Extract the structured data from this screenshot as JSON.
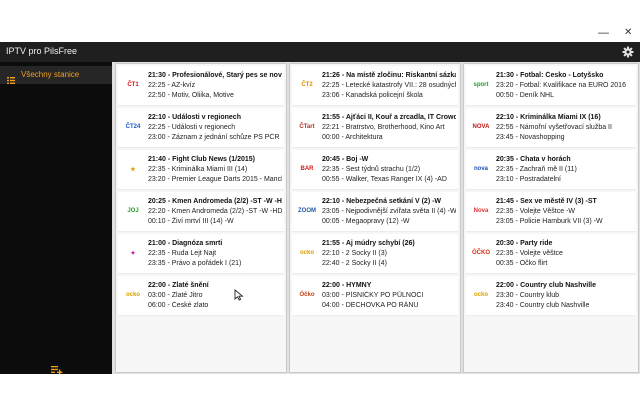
{
  "window": {
    "minimize_glyph": "—",
    "close_glyph": "✕"
  },
  "appbar": {
    "title": "IPTV pro PilsFree",
    "settings_icon": "gear-icon"
  },
  "sidebar": {
    "items": [
      {
        "label": "Všechny stanice",
        "icon": "list-icon",
        "active": true
      }
    ],
    "add_icon": "playlist-add-icon",
    "accent": "#f0a020"
  },
  "columns": [
    {
      "cards": [
        {
          "logo": "ČT1",
          "logo_color": "#d01818",
          "now": "21:30 - Profesionálové, Starý pes se novým k...",
          "next1": "22:25 - AZ-kvíz",
          "next2": "22:50 - Motiv, Oliika, Motive"
        },
        {
          "logo": "ČT24",
          "logo_color": "#1a55c8",
          "now": "22:10 - Události v regionech",
          "next1": "22:25 - Události v regionech",
          "next2": "23:00 - Záznam z jednání schůze PS PČR"
        },
        {
          "logo": "★",
          "logo_color": "#e0a000",
          "now": "21:40 - Fight Club News (1/2015)",
          "next1": "22:35 - Kriminálka Miami III (14)",
          "next2": "23:20 - Premier League Darts 2015 - Manchest..."
        },
        {
          "logo": "JOJ",
          "logo_color": "#2a9a2a",
          "now": "20:25 - Kmen Andromeda (2/2) -ST -W -HD",
          "next1": "22:20 - Kmen Andromeda (2/2) -ST -W -HD",
          "next2": "00:10 - Živí mrtví III (14) -W"
        },
        {
          "logo": "✦",
          "logo_color": "#c0159a",
          "now": "21:00 - Diagnóza smrti",
          "next1": "22:35 - Ruda Lejt Najt",
          "next2": "23:35 - Právo a pořádek I (21)"
        },
        {
          "logo": "ocko",
          "logo_color": "#d8a000",
          "now": "22:00 - Zlaté šnění",
          "next1": "03:00 - Zlaté Jitro",
          "next2": "06:00 - České zlato"
        }
      ]
    },
    {
      "cards": [
        {
          "logo": "ČT2",
          "logo_color": "#e08a00",
          "now": "21:26 - Na místě zločinu: Riskantní sázka",
          "next1": "22:25 - Letecké katastrofy VII.: 28 osudných se...",
          "next2": "23:06 - Kanadská policejní škola"
        },
        {
          "logo": "ČTart",
          "logo_color": "#b03020",
          "now": "21:55 - Ajťáci II, Kouř a zrcadla, IT Crowd",
          "next1": "22:21 - Bratrstvo, Brotherhood, Kino Art",
          "next2": "00:00 - Architektura"
        },
        {
          "logo": "BAR",
          "logo_color": "#d02020",
          "now": "20:45 - Boj -W",
          "next1": "22:35 - Šest týdnů strachu (1/2)",
          "next2": "00:55 - Walker, Texas Ranger IX (4) -AD"
        },
        {
          "logo": "ZOOM",
          "logo_color": "#1e5aa8",
          "now": "22:10 - Nebezpečná setkání V (2) -W",
          "next1": "23:05 - Nejpodivnější zvířata světa II (4) -W",
          "next2": "00:05 - Megaopravy (12) -W"
        },
        {
          "logo": "ocko",
          "logo_color": "#d8a000",
          "now": "21:55 - Aj múdry schybí (26)",
          "next1": "22:10 - 2 Šocky II (3)",
          "next2": "22:40 - 2 Šocky II (4)"
        },
        {
          "logo": "Óčko",
          "logo_color": "#c84010",
          "now": "22:00 - HYMNY",
          "next1": "03:00 - PÍSNIČKY PO PŮLNOCI",
          "next2": "04:00 - DECHOVKA PO RÁNU"
        }
      ]
    },
    {
      "cards": [
        {
          "logo": "sport",
          "logo_color": "#2a9a2a",
          "now": "21:30 - Fotbal: Česko - Lotyšsko",
          "next1": "23:20 - Fotbal: Kvalifikace na EURO 2016",
          "next2": "00:50 - Deník NHL"
        },
        {
          "logo": "NOVA",
          "logo_color": "#c01818",
          "now": "22:10 - Kriminálka Miami IX (16)",
          "next1": "22:55 - Námořní vyšetřovací služba II",
          "next2": "23:45 - Novashopping"
        },
        {
          "logo": "nova",
          "logo_color": "#2050b0",
          "now": "20:35 - Chata v horách",
          "next1": "22:35 - Zachraň mě II (11)",
          "next2": "23:10 - Postradatelní"
        },
        {
          "logo": "Nova",
          "logo_color": "#e03030",
          "now": "21:45 - Sex ve městě IV (3) -ST",
          "next1": "22:35 - Volejte Věštce -W",
          "next2": "23:05 - Policie Hamburk VII (3) -W"
        },
        {
          "logo": "ÓČKO",
          "logo_color": "#d03010",
          "now": "20:30 - Party ride",
          "next1": "22:35 - Volejte věštce",
          "next2": "00:35 - Óčko flirt"
        },
        {
          "logo": "ocko",
          "logo_color": "#d8a000",
          "now": "22:00 - Country club Nashville",
          "next1": "23:30 - Country klub",
          "next2": "23:40 - Country club Nashville"
        }
      ]
    }
  ]
}
